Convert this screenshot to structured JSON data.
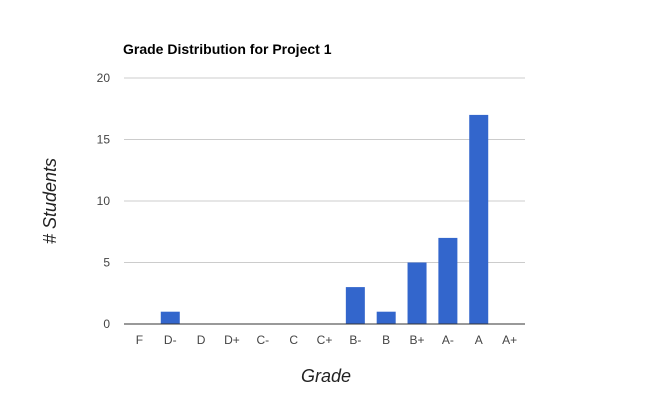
{
  "chart_data": {
    "type": "bar",
    "title": "Grade Distribution for Project 1",
    "xlabel": "Grade",
    "ylabel": "# Students",
    "categories": [
      "F",
      "D-",
      "D",
      "D+",
      "C-",
      "C",
      "C+",
      "B-",
      "B",
      "B+",
      "A-",
      "A",
      "A+"
    ],
    "values": [
      0,
      1,
      0,
      0,
      0,
      0,
      0,
      3,
      1,
      5,
      7,
      17,
      0
    ],
    "ylim": [
      0,
      20
    ],
    "yticks": [
      "0",
      "5",
      "10",
      "15",
      "20"
    ],
    "grid": true,
    "legend": "none",
    "colors": {
      "bar": "#3366cc",
      "grid": "#cccccc",
      "axis": "#333333"
    }
  }
}
